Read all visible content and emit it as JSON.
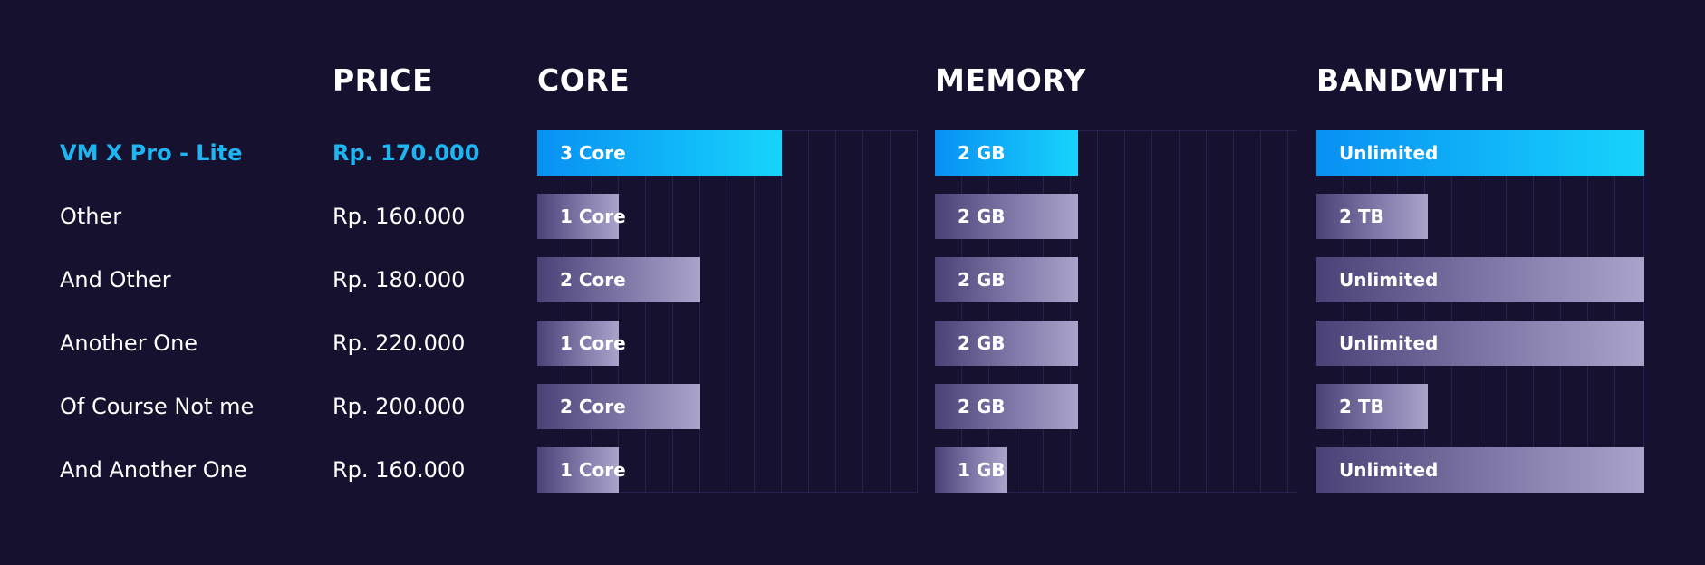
{
  "chart_data": {
    "type": "table",
    "columns": [
      "",
      "PRICE",
      "CORE",
      "MEMORY",
      "BANDWITH"
    ],
    "highlight_row": 0,
    "colors": {
      "background": "#15112e",
      "highlight_text": "#1db5f2",
      "highlight_bar_start": "#0890f3",
      "highlight_bar_end": "#17d4fb",
      "bar_start": "#4a4276",
      "bar_end": "#aaa3cb"
    },
    "rows": [
      {
        "name": "VM X Pro - Lite",
        "price": "Rp. 170.000",
        "core": {
          "label": "3 Core",
          "value": 3
        },
        "memory": {
          "label": "2 GB",
          "value": 2
        },
        "bandwidth": {
          "label": "Unlimited",
          "value": 1.0
        }
      },
      {
        "name": "Other",
        "price": "Rp. 160.000",
        "core": {
          "label": "1 Core",
          "value": 1
        },
        "memory": {
          "label": "2 GB",
          "value": 2
        },
        "bandwidth": {
          "label": "2 TB",
          "value": 0.34
        }
      },
      {
        "name": "And Other",
        "price": "Rp. 180.000",
        "core": {
          "label": "2 Core",
          "value": 2
        },
        "memory": {
          "label": "2 GB",
          "value": 2
        },
        "bandwidth": {
          "label": "Unlimited",
          "value": 1.0
        }
      },
      {
        "name": "Another One",
        "price": "Rp. 220.000",
        "core": {
          "label": "1 Core",
          "value": 1
        },
        "memory": {
          "label": "2 GB",
          "value": 2
        },
        "bandwidth": {
          "label": "Unlimited",
          "value": 1.0
        }
      },
      {
        "name": "Of Course Not me",
        "price": "Rp. 200.000",
        "core": {
          "label": "2 Core",
          "value": 2
        },
        "memory": {
          "label": "2 GB",
          "value": 2
        },
        "bandwidth": {
          "label": "2 TB",
          "value": 0.34
        }
      },
      {
        "name": "And Another One",
        "price": "Rp. 160.000",
        "core": {
          "label": "1 Core",
          "value": 1
        },
        "memory": {
          "label": "1 GB",
          "value": 1
        },
        "bandwidth": {
          "label": "Unlimited",
          "value": 1.0
        }
      }
    ]
  }
}
